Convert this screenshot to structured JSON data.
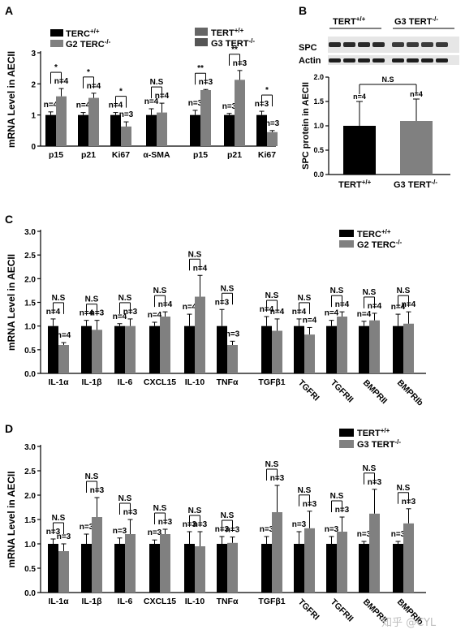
{
  "colors": {
    "black": "#000000",
    "gray": "#808080",
    "dark_gray": "#555555",
    "mid_gray": "#666666",
    "blot_bg": "#e6e6e6"
  },
  "watermark": "知乎 @CYL",
  "chart_data": [
    {
      "id": "A",
      "panel_label": "A",
      "type": "bar",
      "ylabel": "mRNA Level in AECII",
      "ylim": [
        0,
        3
      ],
      "yticks": [
        "0",
        "1",
        "2",
        "3"
      ],
      "legends": [
        {
          "group": "terc",
          "items": [
            {
              "name": "TERC",
              "sup": "+/+"
            },
            {
              "name": "G2 TERC",
              "sup": "-/-"
            }
          ]
        },
        {
          "group": "tert",
          "items": [
            {
              "name": "TERT",
              "sup": "+/+"
            },
            {
              "name": "G3 TERT",
              "sup": "-/-"
            }
          ]
        }
      ],
      "categories": [
        "p15",
        "p21",
        "Ki67",
        "α-SMA",
        "p15",
        "p21",
        "Ki67"
      ],
      "series": [
        {
          "values": [
            1.0,
            1.0,
            1.0,
            1.0,
            1.0,
            1.0,
            1.0
          ],
          "errors": [
            0.1,
            0.08,
            0.08,
            0.2,
            0.15,
            0.05,
            0.12
          ],
          "n_labels": [
            "n=4",
            "n=4",
            "n=4",
            "n=4",
            "n=3",
            "n=3",
            "n=3"
          ]
        },
        {
          "values": [
            1.6,
            1.55,
            0.63,
            1.08,
            1.8,
            2.13,
            0.45
          ],
          "errors": [
            0.25,
            0.15,
            0.15,
            0.3,
            0.02,
            0.3,
            0.05
          ],
          "n_labels": [
            "n=4",
            "n=4",
            "n=3",
            "n=4",
            "n=3",
            "n=3",
            "n=3"
          ]
        }
      ],
      "significance": [
        "*",
        "*",
        "*",
        "N.S",
        "**",
        "**",
        "*"
      ]
    },
    {
      "id": "B",
      "panel_label": "B",
      "type": "bar",
      "blot_headers": [
        {
          "name": "TERT",
          "sup": "+/+"
        },
        {
          "name": "G3 TERT",
          "sup": "-/-"
        }
      ],
      "blot_rows": [
        "SPC",
        "Actin"
      ],
      "ylabel": "SPC protein in AECII",
      "ylim": [
        0,
        2.0
      ],
      "yticks": [
        "0.0",
        "0.5",
        "1.0",
        "1.5",
        "2.0"
      ],
      "categories": [
        {
          "name": "TERT",
          "sup": "+/+"
        },
        {
          "name": "G3 TERT",
          "sup": "-/-"
        }
      ],
      "values": [
        1.0,
        1.1
      ],
      "errors": [
        0.5,
        0.45
      ],
      "n_labels": [
        "n=4",
        "n=4"
      ],
      "significance": "N.S"
    },
    {
      "id": "C",
      "panel_label": "C",
      "type": "bar",
      "ylabel": "mRNA Level in AECII",
      "ylim": [
        0,
        3.0
      ],
      "yticks": [
        "0.0",
        "0.5",
        "1.0",
        "1.5",
        "2.0",
        "2.5",
        "3.0"
      ],
      "legend": [
        {
          "name": "TERC",
          "sup": "+/+"
        },
        {
          "name": "G2 TERC",
          "sup": "-/-"
        }
      ],
      "categories": [
        "IL-1α",
        "IL-1β",
        "IL-6",
        "CXCL15",
        "IL-10",
        "TNFα",
        "TGFβ1",
        "TGFRI",
        "TGFRII",
        "BMPRII",
        "BMPRIb"
      ],
      "series": [
        {
          "values": [
            1.0,
            1.0,
            1.0,
            1.0,
            1.0,
            1.0,
            1.0,
            1.0,
            1.0,
            1.0,
            1.0
          ],
          "errors": [
            0.15,
            0.12,
            0.05,
            0.08,
            0.25,
            0.35,
            0.2,
            0.15,
            0.12,
            0.1,
            0.25
          ],
          "n_labels": [
            "n=4",
            "n=4",
            "n=4",
            "n=4",
            "n=4",
            "n=3",
            "n=4",
            "n=4",
            "n=4",
            "n=4",
            "n=4"
          ]
        },
        {
          "values": [
            0.6,
            0.92,
            1.0,
            1.2,
            1.62,
            0.6,
            0.9,
            0.82,
            1.2,
            1.12,
            1.05
          ],
          "errors": [
            0.05,
            0.2,
            0.15,
            0.1,
            0.45,
            0.08,
            0.25,
            0.15,
            0.1,
            0.15,
            0.25
          ],
          "n_labels": [
            "n=4",
            "n=3",
            "n=3",
            "n=4",
            "n=4",
            "n=3",
            "n=4",
            "n=4",
            "n=4",
            "n=4",
            "n=4"
          ]
        }
      ],
      "significance": [
        "N.S",
        "N.S",
        "N.S",
        "N.S",
        "N.S",
        "N.S",
        "N.S",
        "N.S",
        "N.S",
        "N.S",
        "N.S"
      ]
    },
    {
      "id": "D",
      "panel_label": "D",
      "type": "bar",
      "ylabel": "mRNA Level in AECII",
      "ylim": [
        0,
        3.0
      ],
      "yticks": [
        "0.0",
        "0.5",
        "1.0",
        "1.5",
        "2.0",
        "2.5",
        "3.0"
      ],
      "legend": [
        {
          "name": "TERT",
          "sup": "+/+"
        },
        {
          "name": "G3 TERT",
          "sup": "-/-"
        }
      ],
      "categories": [
        "IL-1α",
        "IL-1β",
        "IL-6",
        "CXCL15",
        "IL-10",
        "TNFα",
        "TGFβ1",
        "TGFRI",
        "TGFRII",
        "BMPRII",
        "BMPRIb"
      ],
      "series": [
        {
          "values": [
            1.0,
            1.0,
            1.0,
            1.0,
            1.0,
            1.0,
            1.0,
            1.0,
            1.0,
            1.0,
            1.0
          ],
          "errors": [
            0.1,
            0.2,
            0.12,
            0.08,
            0.25,
            0.15,
            0.15,
            0.25,
            0.15,
            0.05,
            0.05
          ],
          "n_labels": [
            "n=3",
            "n=3",
            "n=3",
            "n=3",
            "n=3",
            "n=3",
            "n=3",
            "n=3",
            "n=3",
            "n=3",
            "n=3"
          ]
        },
        {
          "values": [
            0.85,
            1.55,
            1.2,
            1.2,
            0.95,
            1.02,
            1.65,
            1.32,
            1.25,
            1.62,
            1.42
          ],
          "errors": [
            0.15,
            0.4,
            0.3,
            0.1,
            0.3,
            0.12,
            0.55,
            0.35,
            0.3,
            0.5,
            0.3
          ],
          "n_labels": [
            "n=3",
            "n=3",
            "n=3",
            "n=3",
            "n=3",
            "n=3",
            "n=3",
            "n=3",
            "n=3",
            "n=3",
            "n=3"
          ]
        }
      ],
      "significance": [
        "N.S",
        "N.S",
        "N.S",
        "N.S",
        "N.S",
        "N.S",
        "N.S",
        "N.S",
        "N.S",
        "N.S",
        "N.S"
      ]
    }
  ]
}
